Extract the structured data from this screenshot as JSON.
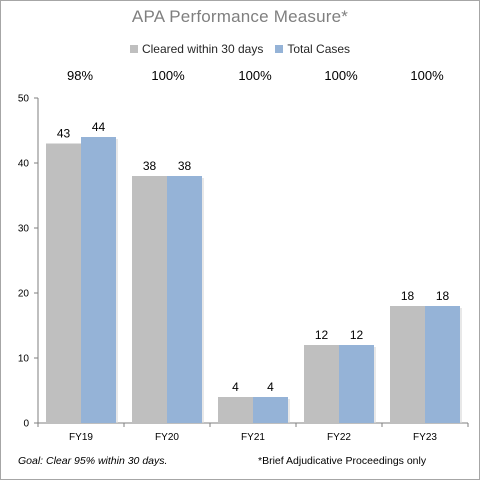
{
  "chart_data": {
    "type": "bar",
    "title": "APA Performance Measure*",
    "categories": [
      "FY19",
      "FY20",
      "FY21",
      "FY22",
      "FY23"
    ],
    "series": [
      {
        "name": "Cleared within 30 days",
        "values": [
          43,
          38,
          4,
          12,
          18
        ],
        "color": "#bfbfbf"
      },
      {
        "name": "Total Cases",
        "values": [
          44,
          38,
          4,
          12,
          18
        ],
        "color": "#95b3d7"
      }
    ],
    "percent_labels": [
      "98%",
      "100%",
      "100%",
      "100%",
      "100%"
    ],
    "ylim": [
      0,
      50
    ],
    "yticks": [
      0,
      10,
      20,
      30,
      40,
      50
    ],
    "xlabel": "",
    "ylabel": "",
    "grid": false,
    "legend_position": "top-center"
  },
  "footnotes": {
    "goal": "Goal:  Clear 95% within 30 days.",
    "note": "*Brief Adjudicative Proceedings only"
  }
}
